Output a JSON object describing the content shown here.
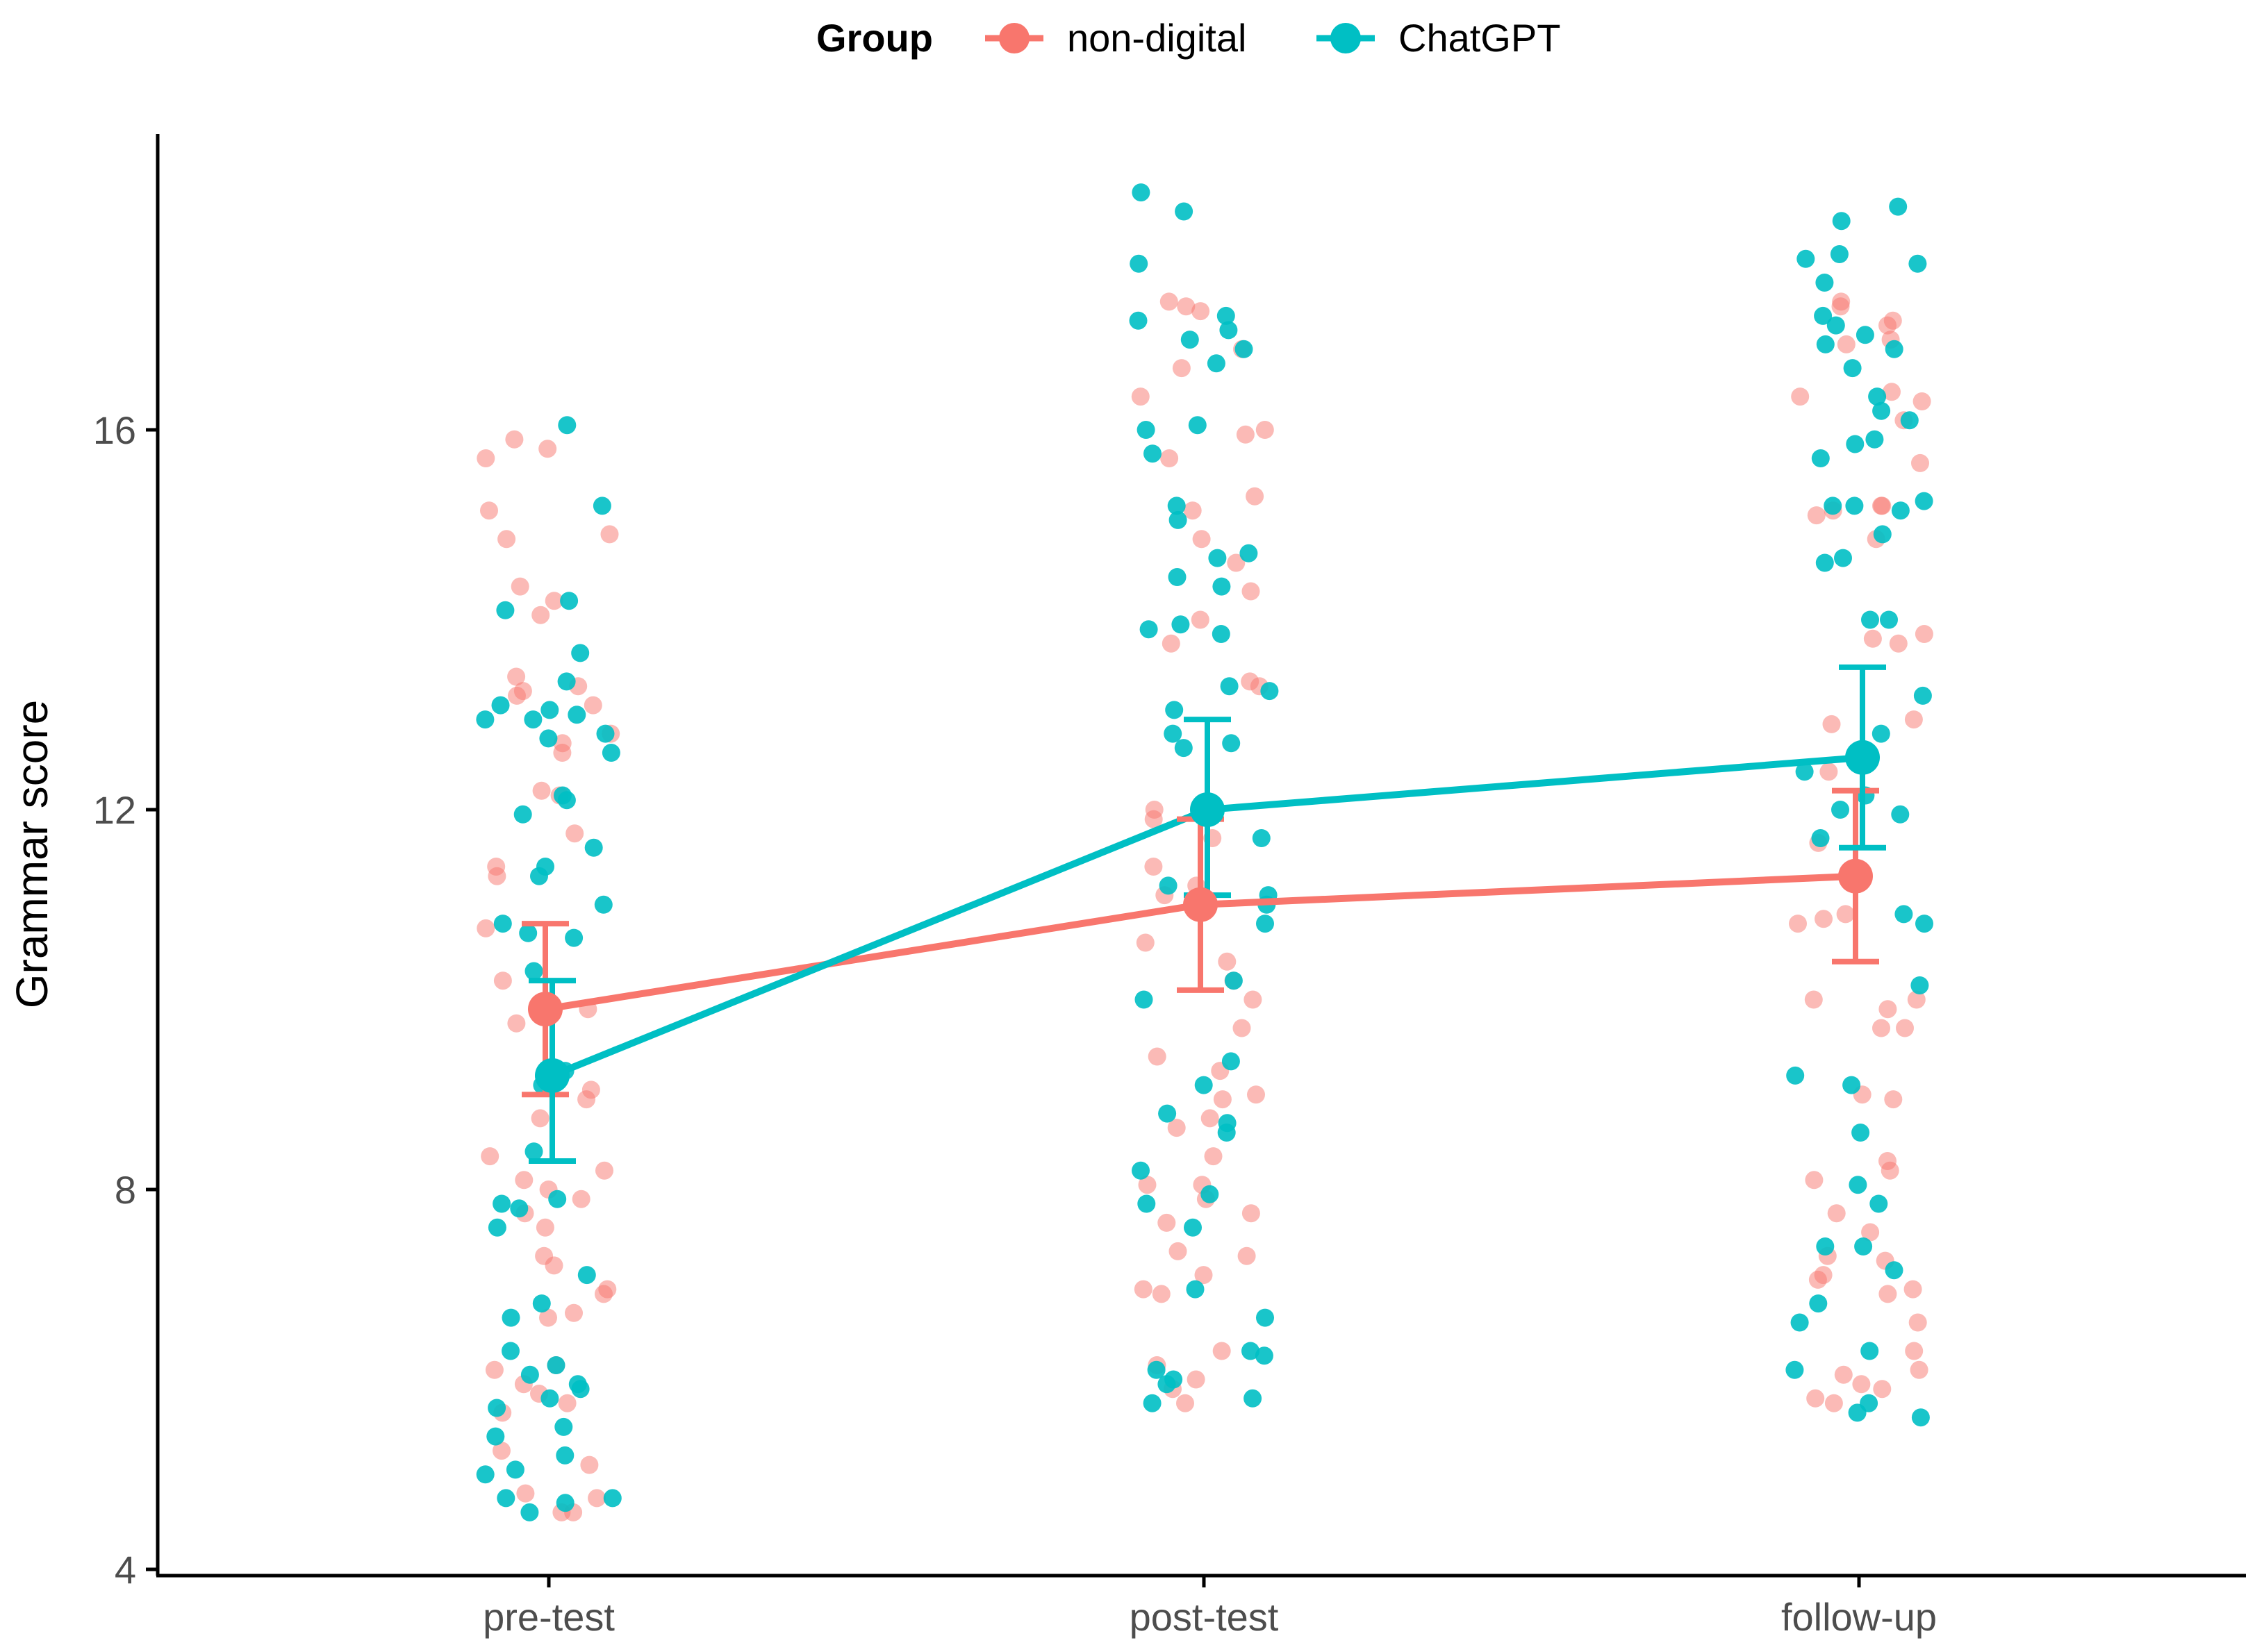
{
  "chart_data": {
    "type": "line",
    "ylabel": "Grammar score",
    "xlabel": "",
    "ylim": [
      4,
      19.1
    ],
    "y_ticks": [
      4,
      8,
      12,
      16
    ],
    "categories": [
      "pre-test",
      "post-test",
      "follow-up"
    ],
    "legend": {
      "title": "Group",
      "placement": "top",
      "entries": [
        "non-digital",
        "ChatGPT"
      ]
    },
    "series": [
      {
        "name": "non-digital",
        "color": "#F8766D",
        "means": [
          9.9,
          11.0,
          11.3
        ],
        "ci_lower": [
          9.0,
          10.1,
          10.4
        ],
        "ci_upper": [
          10.8,
          11.9,
          12.2
        ],
        "points": [
          [
            14.05,
            15.8,
            15.9,
            15.7,
            14.85,
            15.15,
            14.9,
            13.4,
            13.2,
            13.25,
            13.3,
            13.1,
            12.8,
            12.2,
            12.15,
            11.75,
            11.4,
            11.3,
            10.75,
            10.2,
            9.9,
            9.75,
            9.05,
            8.95,
            8.75,
            8.35,
            8.2,
            8.1,
            8.0,
            7.9,
            7.75,
            7.6,
            7.3,
            7.2,
            6.95,
            6.9,
            6.7,
            6.65,
            6.15,
            6.1,
            5.95,
            5.85,
            5.75,
            5.65,
            5.25,
            5.1,
            4.8,
            4.75,
            4.6,
            4.6,
            14.35,
            14.2,
            12.6,
            12.7
          ],
          [
            17.35,
            16.65,
            16.35,
            16.0,
            15.95,
            15.7,
            15.3,
            15.15,
            14.85,
            14.6,
            14.3,
            14.0,
            13.75,
            13.35,
            13.3,
            12.0,
            11.9,
            11.7,
            11.4,
            11.2,
            11.1,
            10.6,
            10.4,
            10.2,
            10.0,
            9.7,
            9.4,
            9.25,
            9.0,
            8.95,
            8.75,
            8.65,
            8.35,
            8.05,
            8.05,
            7.9,
            7.75,
            7.65,
            7.35,
            7.3,
            7.1,
            6.95,
            6.9,
            6.3,
            6.15,
            6.0,
            5.9,
            5.75,
            17.25,
            17.3,
            16.85,
            12.05
          ],
          [
            17.35,
            17.3,
            17.1,
            16.95,
            16.4,
            16.35,
            16.3,
            16.1,
            15.65,
            15.2,
            15.15,
            15.1,
            14.85,
            13.85,
            13.8,
            13.75,
            12.95,
            12.9,
            12.4,
            11.65,
            10.9,
            10.85,
            10.8,
            10.0,
            10.0,
            9.9,
            9.7,
            9.7,
            9.0,
            8.95,
            8.3,
            8.2,
            8.1,
            7.75,
            7.55,
            7.3,
            7.25,
            7.1,
            7.05,
            6.95,
            6.9,
            6.6,
            6.3,
            6.1,
            6.05,
            5.95,
            5.9,
            5.8,
            5.75,
            16.9,
            17.15,
            15.2
          ]
        ]
      },
      {
        "name": "ChatGPT",
        "color": "#00BFC4",
        "means": [
          9.2,
          12.0,
          12.55
        ],
        "ci_lower": [
          8.3,
          11.1,
          11.6
        ],
        "ci_upper": [
          10.2,
          12.95,
          13.5
        ],
        "points": [
          [
            16.05,
            15.2,
            14.2,
            14.1,
            13.65,
            13.35,
            13.1,
            13.05,
            12.95,
            12.8,
            12.75,
            12.6,
            12.15,
            12.1,
            11.95,
            11.6,
            11.4,
            11.3,
            11.0,
            10.8,
            10.7,
            10.65,
            10.3,
            9.25,
            9.2,
            9.1,
            8.4,
            7.9,
            7.85,
            7.8,
            7.6,
            7.1,
            6.8,
            6.65,
            6.3,
            6.15,
            6.05,
            5.95,
            5.9,
            5.8,
            5.7,
            5.5,
            5.4,
            5.2,
            5.05,
            5.0,
            4.75,
            4.75,
            4.7,
            4.6,
            12.95,
            13.0
          ],
          [
            18.5,
            18.3,
            17.75,
            17.2,
            17.15,
            17.05,
            16.95,
            16.85,
            16.7,
            16.05,
            16.0,
            15.75,
            15.2,
            15.05,
            14.7,
            14.65,
            14.45,
            14.35,
            13.95,
            13.9,
            13.85,
            13.3,
            13.25,
            13.05,
            12.8,
            12.7,
            12.65,
            11.7,
            11.2,
            11.1,
            11.0,
            10.8,
            10.2,
            10.0,
            9.35,
            9.1,
            8.8,
            8.7,
            8.6,
            8.2,
            7.95,
            7.85,
            7.6,
            6.95,
            6.65,
            6.3,
            6.25,
            6.1,
            6.0,
            5.95,
            5.8,
            5.75
          ],
          [
            18.35,
            18.2,
            17.85,
            17.8,
            17.75,
            17.55,
            17.1,
            17.0,
            16.9,
            16.85,
            16.65,
            16.35,
            16.2,
            16.1,
            15.9,
            15.7,
            15.25,
            15.2,
            15.2,
            15.15,
            14.9,
            14.65,
            14.6,
            14.0,
            14.0,
            13.2,
            12.8,
            12.4,
            12.15,
            12.0,
            11.95,
            11.7,
            10.9,
            10.8,
            10.15,
            9.2,
            9.1,
            8.6,
            8.05,
            7.85,
            7.4,
            7.4,
            7.15,
            6.8,
            6.6,
            6.3,
            6.1,
            5.75,
            5.65,
            5.6,
            17.2,
            15.85
          ]
        ]
      }
    ]
  }
}
